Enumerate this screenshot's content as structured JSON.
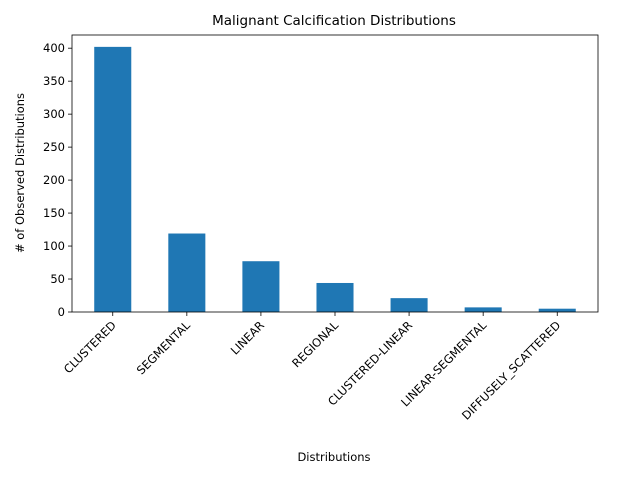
{
  "chart_data": {
    "type": "bar",
    "title": "Malignant Calcification Distributions",
    "xlabel": "Distributions",
    "ylabel": "# of Observed Distributions",
    "categories": [
      "CLUSTERED",
      "SEGMENTAL",
      "LINEAR",
      "REGIONAL",
      "CLUSTERED-LINEAR",
      "LINEAR-SEGMENTAL",
      "DIFFUSELY_SCATTERED"
    ],
    "values": [
      402,
      119,
      77,
      44,
      21,
      7,
      5
    ],
    "ylim": [
      0,
      420
    ],
    "yticks": [
      0,
      50,
      100,
      150,
      200,
      250,
      300,
      350,
      400
    ],
    "grid": false,
    "bar_color": "#1f77b4"
  }
}
